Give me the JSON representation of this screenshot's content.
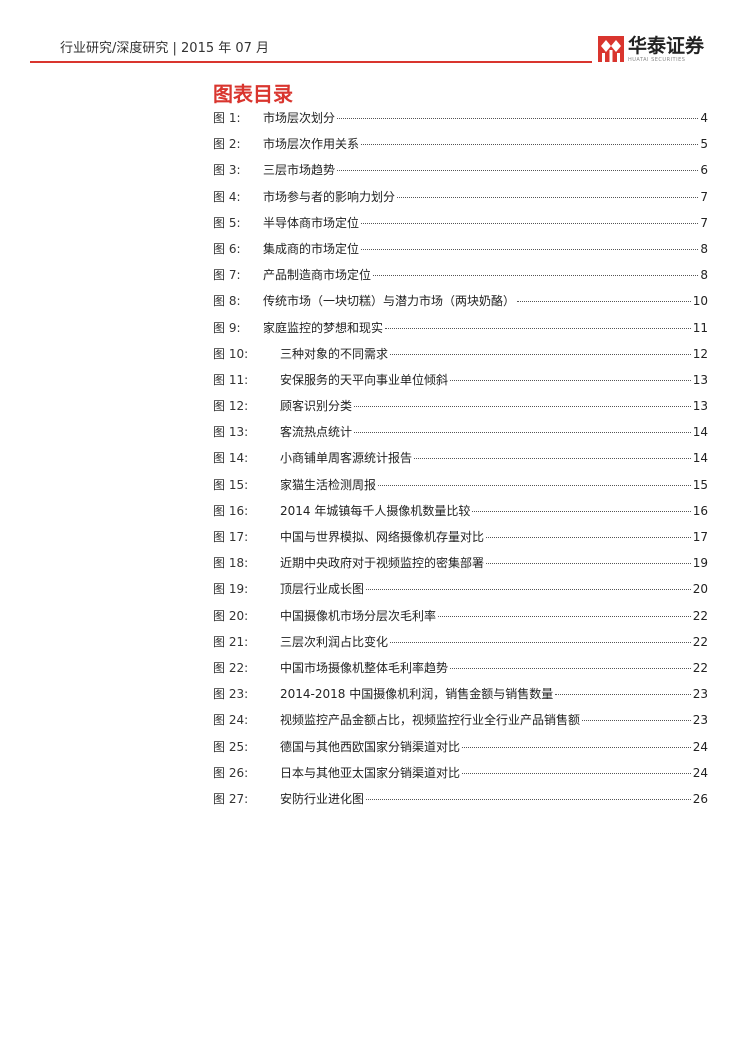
{
  "header": {
    "text": "行业研究/深度研究 | 2015 年 07 月",
    "logo_name": "华泰证券",
    "logo_sub": "HUATAI SECURITIES",
    "accent": "#d9352e"
  },
  "title": "图表目录",
  "entries": [
    {
      "label": "图 1:",
      "title": "市场层次划分",
      "page": "4"
    },
    {
      "label": "图 2:",
      "title": "市场层次作用关系",
      "page": "5"
    },
    {
      "label": "图 3:",
      "title": "三层市场趋势",
      "page": "6"
    },
    {
      "label": "图 4:",
      "title": "市场参与者的影响力划分",
      "page": "7"
    },
    {
      "label": "图 5:",
      "title": "半导体商市场定位",
      "page": "7"
    },
    {
      "label": "图 6:",
      "title": "集成商的市场定位",
      "page": "8"
    },
    {
      "label": "图 7:",
      "title": "产品制造商市场定位",
      "page": "8"
    },
    {
      "label": "图 8:",
      "title": "传统市场（一块切糕）与潜力市场（两块奶酪）",
      "page": "10"
    },
    {
      "label": "图 9:",
      "title": "家庭监控的梦想和现实",
      "page": "11"
    },
    {
      "label": "图 10:",
      "title": "三种对象的不同需求",
      "page": "12"
    },
    {
      "label": "图 11:",
      "title": "安保服务的天平向事业单位倾斜",
      "page": "13"
    },
    {
      "label": "图 12:",
      "title": "顾客识别分类",
      "page": "13"
    },
    {
      "label": "图 13:",
      "title": "客流热点统计",
      "page": "14"
    },
    {
      "label": "图 14:",
      "title": "小商铺单周客源统计报告",
      "page": "14"
    },
    {
      "label": "图 15:",
      "title": "家猫生活检测周报",
      "page": "15"
    },
    {
      "label": "图 16:",
      "title": "2014 年城镇每千人摄像机数量比较",
      "page": "16"
    },
    {
      "label": "图 17:",
      "title": "中国与世界模拟、网络摄像机存量对比",
      "page": "17"
    },
    {
      "label": "图 18:",
      "title": "近期中央政府对于视频监控的密集部署",
      "page": "19"
    },
    {
      "label": "图 19:",
      "title": "顶层行业成长图",
      "page": "20"
    },
    {
      "label": "图 20:",
      "title": "中国摄像机市场分层次毛利率",
      "page": "22"
    },
    {
      "label": "图 21:",
      "title": "三层次利润占比变化",
      "page": "22"
    },
    {
      "label": "图 22:",
      "title": "中国市场摄像机整体毛利率趋势",
      "page": "22"
    },
    {
      "label": "图 23:",
      "title": "2014-2018 中国摄像机利润，销售金额与销售数量",
      "page": "23"
    },
    {
      "label": "图 24:",
      "title": "视频监控产品金额占比，视频监控行业全行业产品销售额",
      "page": "23"
    },
    {
      "label": "图 25:",
      "title": "德国与其他西欧国家分销渠道对比",
      "page": "24"
    },
    {
      "label": "图 26:",
      "title": "日本与其他亚太国家分销渠道对比",
      "page": "24"
    },
    {
      "label": "图 27:",
      "title": "安防行业进化图",
      "page": "26"
    }
  ]
}
